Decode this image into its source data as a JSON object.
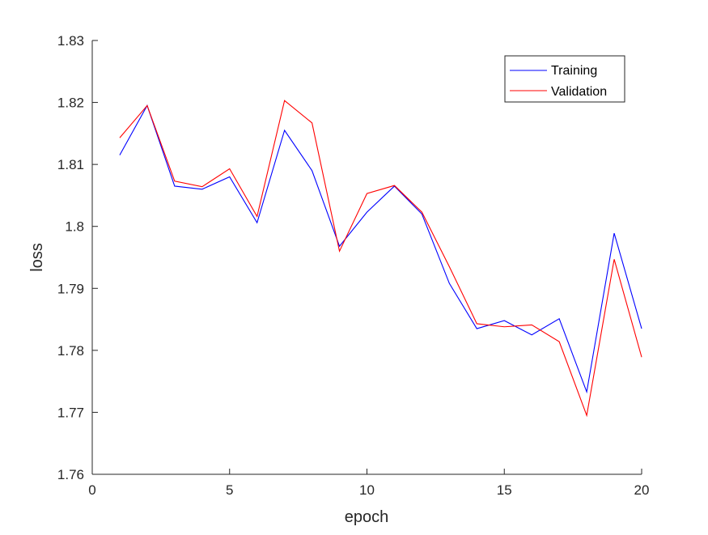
{
  "chart_data": {
    "type": "line",
    "title": "",
    "xlabel": "epoch",
    "ylabel": "loss",
    "xlim": [
      0,
      20
    ],
    "ylim": [
      1.76,
      1.83
    ],
    "x_ticks": [
      0,
      5,
      10,
      15,
      20
    ],
    "x_tick_labels": [
      "0",
      "5",
      "10",
      "15",
      "20"
    ],
    "y_ticks": [
      1.76,
      1.77,
      1.78,
      1.79,
      1.8,
      1.81,
      1.82,
      1.83
    ],
    "y_tick_labels": [
      "1.76",
      "1.77",
      "1.78",
      "1.79",
      "1.8",
      "1.81",
      "1.82",
      "1.83"
    ],
    "grid": false,
    "legend_position": "top-right",
    "x": [
      1,
      2,
      3,
      4,
      5,
      6,
      7,
      8,
      9,
      10,
      11,
      12,
      13,
      14,
      15,
      16,
      17,
      18,
      19,
      20
    ],
    "series": [
      {
        "name": "Training",
        "color": "#0000ff",
        "values": [
          1.8115,
          1.8195,
          1.8065,
          1.806,
          1.808,
          1.8006,
          1.8155,
          1.809,
          1.7968,
          1.8023,
          1.8065,
          1.802,
          1.7908,
          1.7835,
          1.7848,
          1.7825,
          1.7851,
          1.7733,
          1.7989,
          1.7835
        ]
      },
      {
        "name": "Validation",
        "color": "#ff0000",
        "values": [
          1.8143,
          1.8195,
          1.8073,
          1.8064,
          1.8093,
          1.8016,
          1.8203,
          1.8167,
          1.796,
          1.8053,
          1.8066,
          1.8023,
          1.7935,
          1.7843,
          1.7838,
          1.7841,
          1.7814,
          1.7695,
          1.7947,
          1.7789
        ]
      }
    ]
  }
}
